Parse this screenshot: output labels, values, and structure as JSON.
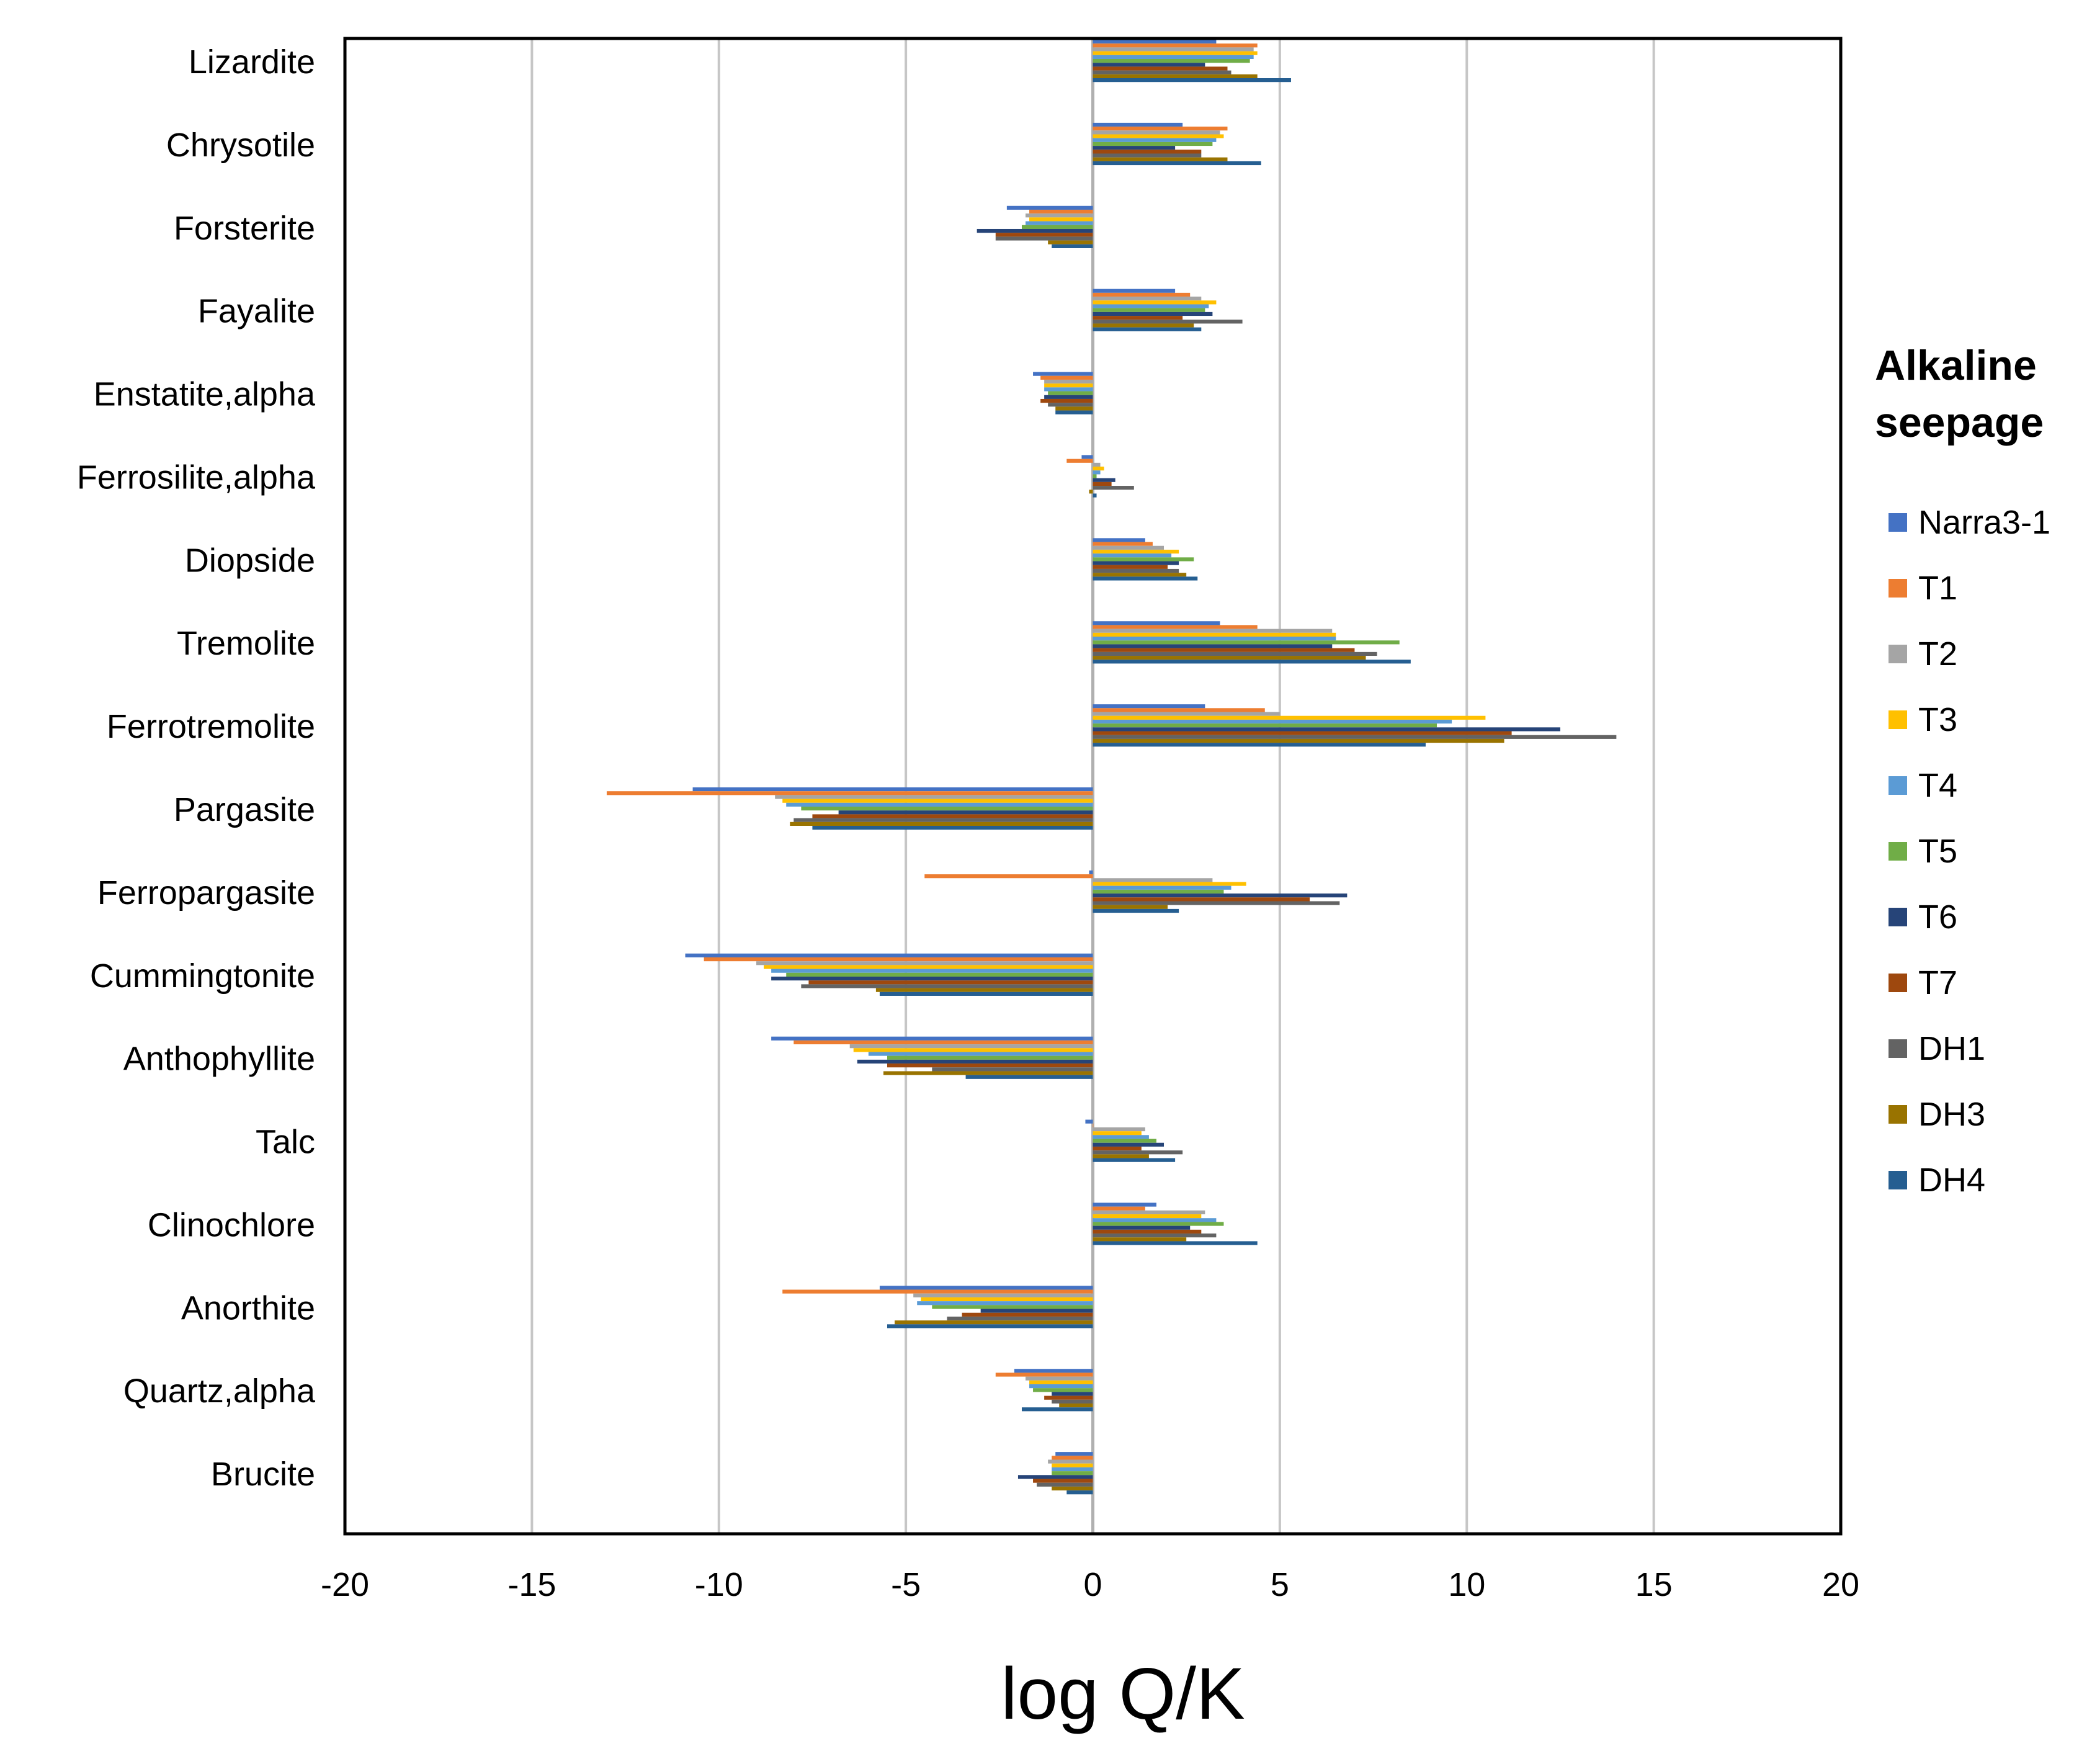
{
  "chart_data": {
    "type": "bar",
    "orientation": "horizontal",
    "title": "",
    "xlabel": "log Q/K",
    "ylabel": "",
    "xlim": [
      -20,
      20
    ],
    "xticks": [
      -20,
      -15,
      -10,
      -5,
      0,
      5,
      10,
      15,
      20
    ],
    "xtick_labels": [
      "-20",
      "-15",
      "-10",
      "-5",
      "0",
      "5",
      "10",
      "15",
      "20"
    ],
    "grid": "vertical",
    "legend": {
      "title": [
        "Alkaline",
        "seepage"
      ],
      "position": "right"
    },
    "categories": [
      "Lizardite",
      "Chrysotile",
      "Forsterite",
      "Fayalite",
      "Enstatite,alpha",
      "Ferrosilite,alpha",
      "Diopside",
      "Tremolite",
      "Ferrotremolite",
      "Pargasite",
      "Ferropargasite",
      "Cummingtonite",
      "Anthophyllite",
      "Talc",
      "Clinochlore",
      "Anorthite",
      "Quartz,alpha",
      "Brucite"
    ],
    "series": [
      {
        "name": "Narra3-1",
        "color": "#4472C4",
        "values": [
          3.3,
          2.4,
          -2.3,
          2.2,
          -1.6,
          -0.3,
          1.4,
          3.4,
          3.0,
          -10.7,
          -0.1,
          -10.9,
          -8.6,
          -0.2,
          1.7,
          -5.7,
          -2.1,
          -1.0
        ]
      },
      {
        "name": "T1",
        "color": "#ED7D31",
        "values": [
          4.4,
          3.6,
          -1.7,
          2.6,
          -1.4,
          -0.7,
          1.6,
          4.4,
          4.6,
          -13.0,
          -4.5,
          -10.4,
          -8.0,
          0.0,
          1.4,
          -8.3,
          -2.6,
          -1.1
        ]
      },
      {
        "name": "T2",
        "color": "#A5A5A5",
        "values": [
          4.3,
          3.4,
          -1.8,
          2.9,
          -1.3,
          0.2,
          1.9,
          6.4,
          5.0,
          -8.5,
          3.2,
          -9.0,
          -6.5,
          1.4,
          3.0,
          -4.8,
          -1.8,
          -1.2
        ]
      },
      {
        "name": "T3",
        "color": "#FFC000",
        "values": [
          4.4,
          3.5,
          -1.7,
          3.3,
          -1.3,
          0.3,
          2.3,
          6.5,
          10.5,
          -8.3,
          4.1,
          -8.8,
          -6.4,
          1.3,
          2.9,
          -4.6,
          -1.7,
          -1.1
        ]
      },
      {
        "name": "T4",
        "color": "#5B9BD5",
        "values": [
          4.3,
          3.3,
          -1.8,
          3.1,
          -1.3,
          0.2,
          2.1,
          6.5,
          9.6,
          -8.2,
          3.7,
          -8.6,
          -6.0,
          1.5,
          3.3,
          -4.7,
          -1.7,
          -1.1
        ]
      },
      {
        "name": "T5",
        "color": "#70AD47",
        "values": [
          4.2,
          3.2,
          -1.9,
          3.0,
          -1.2,
          0.1,
          2.7,
          8.2,
          9.2,
          -7.8,
          3.5,
          -8.2,
          -5.5,
          1.7,
          3.5,
          -4.3,
          -1.6,
          -1.1
        ]
      },
      {
        "name": "T6",
        "color": "#264478",
        "values": [
          3.0,
          2.2,
          -3.1,
          3.2,
          -1.3,
          0.6,
          2.3,
          6.4,
          12.5,
          -6.8,
          6.8,
          -8.6,
          -6.3,
          1.9,
          2.6,
          -3.0,
          -1.1,
          -2.0
        ]
      },
      {
        "name": "T7",
        "color": "#9E480E",
        "values": [
          3.6,
          2.9,
          -2.6,
          2.4,
          -1.4,
          0.5,
          2.0,
          7.0,
          11.2,
          -7.5,
          5.8,
          -7.6,
          -5.5,
          1.3,
          2.9,
          -3.5,
          -1.3,
          -1.6
        ]
      },
      {
        "name": "DH1",
        "color": "#636363",
        "values": [
          3.7,
          2.9,
          -2.6,
          4.0,
          -1.2,
          1.1,
          2.3,
          7.6,
          14.0,
          -8.0,
          6.6,
          -7.8,
          -4.3,
          2.4,
          3.3,
          -3.9,
          -1.1,
          -1.5
        ]
      },
      {
        "name": "DH3",
        "color": "#997300",
        "values": [
          4.4,
          3.6,
          -1.2,
          2.7,
          -1.0,
          -0.1,
          2.5,
          7.3,
          11.0,
          -8.1,
          2.0,
          -5.8,
          -5.6,
          1.5,
          2.5,
          -5.3,
          -0.9,
          -1.1
        ]
      },
      {
        "name": "DH4",
        "color": "#255E91",
        "values": [
          5.3,
          4.5,
          -1.1,
          2.9,
          -1.0,
          0.1,
          2.8,
          8.5,
          8.9,
          -7.5,
          2.3,
          -5.7,
          -3.4,
          2.2,
          4.4,
          -5.5,
          -1.9,
          -0.7
        ]
      }
    ]
  }
}
